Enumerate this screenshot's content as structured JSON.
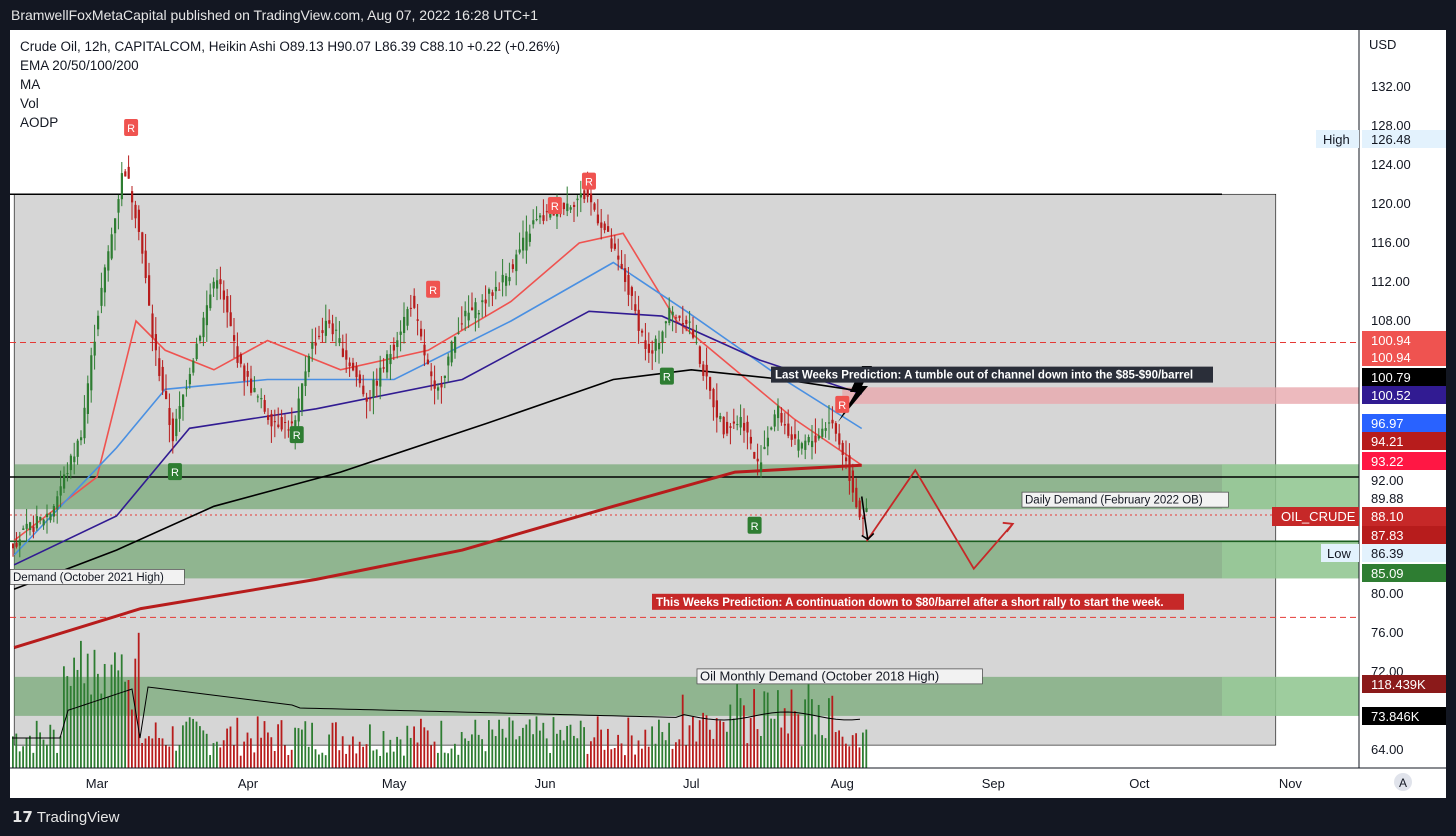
{
  "header": {
    "publisher_line": "BramwellFoxMetaCapital published on TradingView.com, Aug 07, 2022 16:28 UTC+1"
  },
  "legend": {
    "symbol_line": "Crude Oil, 12h, CAPITALCOM, Heikin Ashi  O89.13  H90.07  L86.39  C88.10  +0.22 (+0.26%)",
    "indicators": [
      "EMA 20/50/100/200",
      "MA",
      "Vol",
      "AODP"
    ]
  },
  "footer": {
    "brand": "TradingView",
    "logo_glyph": "17"
  },
  "colors": {
    "bull": "#2e7d32",
    "bear": "#b71c1c",
    "ema20": "#ef5350",
    "ema50": "#4a90e2",
    "ema100": "#311b92",
    "ema200": "#000000",
    "ma": "#b71c1c",
    "range_box": "#d6d6d6",
    "demand_zone": "#6aa36a",
    "supply_zone": "#e8a9ae"
  },
  "chart_data": {
    "type": "candlestick",
    "instrument": "Crude Oil",
    "timeframe": "12h",
    "exchange": "CAPITALCOM",
    "style": "Heikin Ashi",
    "ohlc_last": {
      "open": 89.13,
      "high": 90.07,
      "low": 86.39,
      "close": 88.1,
      "change": "+0.22 (+0.26%)"
    },
    "currency": "USD",
    "y_ticks": [
      "132.00",
      "128.00",
      "124.00",
      "120.00",
      "116.00",
      "112.00",
      "108.00",
      "80.00",
      "76.00",
      "72.00",
      "64.00"
    ],
    "x_ticks": [
      "Mar",
      "Apr",
      "May",
      "Jun",
      "Jul",
      "Aug",
      "Sep",
      "Oct",
      "Nov"
    ],
    "ylim": [
      61.5,
      136
    ],
    "price_key_points": [
      {
        "d": "2022-02-12",
        "p": 85.2
      },
      {
        "d": "2022-02-20",
        "p": 88.5
      },
      {
        "d": "2022-02-26",
        "p": 96
      },
      {
        "d": "2022-03-02",
        "p": 110
      },
      {
        "d": "2022-03-07",
        "p": 124
      },
      {
        "d": "2022-03-10",
        "p": 118
      },
      {
        "d": "2022-03-13",
        "p": 106
      },
      {
        "d": "2022-03-17",
        "p": 96
      },
      {
        "d": "2022-03-21",
        "p": 104
      },
      {
        "d": "2022-03-26",
        "p": 113
      },
      {
        "d": "2022-03-31",
        "p": 103
      },
      {
        "d": "2022-04-06",
        "p": 98
      },
      {
        "d": "2022-04-11",
        "p": 97
      },
      {
        "d": "2022-04-14",
        "p": 105
      },
      {
        "d": "2022-04-18",
        "p": 108
      },
      {
        "d": "2022-04-22",
        "p": 104
      },
      {
        "d": "2022-04-26",
        "p": 100
      },
      {
        "d": "2022-04-30",
        "p": 104
      },
      {
        "d": "2022-05-05",
        "p": 110
      },
      {
        "d": "2022-05-10",
        "p": 100
      },
      {
        "d": "2022-05-15",
        "p": 108
      },
      {
        "d": "2022-05-20",
        "p": 110
      },
      {
        "d": "2022-05-25",
        "p": 113
      },
      {
        "d": "2022-05-30",
        "p": 118
      },
      {
        "d": "2022-06-06",
        "p": 120
      },
      {
        "d": "2022-06-10",
        "p": 121
      },
      {
        "d": "2022-06-14",
        "p": 117
      },
      {
        "d": "2022-06-18",
        "p": 112
      },
      {
        "d": "2022-06-23",
        "p": 104
      },
      {
        "d": "2022-06-27",
        "p": 109
      },
      {
        "d": "2022-07-01",
        "p": 108
      },
      {
        "d": "2022-07-05",
        "p": 101
      },
      {
        "d": "2022-07-08",
        "p": 97
      },
      {
        "d": "2022-07-12",
        "p": 98
      },
      {
        "d": "2022-07-15",
        "p": 93
      },
      {
        "d": "2022-07-19",
        "p": 99
      },
      {
        "d": "2022-07-23",
        "p": 95
      },
      {
        "d": "2022-07-27",
        "p": 96
      },
      {
        "d": "2022-07-30",
        "p": 98
      },
      {
        "d": "2022-08-02",
        "p": 94
      },
      {
        "d": "2022-08-05",
        "p": 88.1
      }
    ],
    "ema": [
      {
        "name": "EMA 20",
        "color": "#ef5350",
        "points": [
          {
            "d": "2022-02-12",
            "p": 85.5
          },
          {
            "d": "2022-03-01",
            "p": 92
          },
          {
            "d": "2022-03-09",
            "p": 108
          },
          {
            "d": "2022-03-15",
            "p": 105
          },
          {
            "d": "2022-03-25",
            "p": 103
          },
          {
            "d": "2022-04-05",
            "p": 106
          },
          {
            "d": "2022-04-20",
            "p": 103
          },
          {
            "d": "2022-05-08",
            "p": 105
          },
          {
            "d": "2022-05-25",
            "p": 110
          },
          {
            "d": "2022-06-08",
            "p": 116
          },
          {
            "d": "2022-06-17",
            "p": 117
          },
          {
            "d": "2022-06-28",
            "p": 108
          },
          {
            "d": "2022-07-10",
            "p": 103
          },
          {
            "d": "2022-07-22",
            "p": 98
          },
          {
            "d": "2022-08-05",
            "p": 93.22
          }
        ]
      },
      {
        "name": "EMA 50",
        "color": "#4a90e2",
        "points": [
          {
            "d": "2022-02-12",
            "p": 84
          },
          {
            "d": "2022-03-05",
            "p": 95
          },
          {
            "d": "2022-03-15",
            "p": 101
          },
          {
            "d": "2022-04-05",
            "p": 102
          },
          {
            "d": "2022-05-01",
            "p": 102
          },
          {
            "d": "2022-05-25",
            "p": 108
          },
          {
            "d": "2022-06-15",
            "p": 114
          },
          {
            "d": "2022-06-30",
            "p": 109
          },
          {
            "d": "2022-07-20",
            "p": 102
          },
          {
            "d": "2022-08-05",
            "p": 96.97
          }
        ]
      },
      {
        "name": "EMA 100",
        "color": "#311b92",
        "points": [
          {
            "d": "2022-02-12",
            "p": 83
          },
          {
            "d": "2022-03-05",
            "p": 88
          },
          {
            "d": "2022-03-20",
            "p": 97
          },
          {
            "d": "2022-04-15",
            "p": 99
          },
          {
            "d": "2022-05-15",
            "p": 102
          },
          {
            "d": "2022-06-10",
            "p": 109
          },
          {
            "d": "2022-06-25",
            "p": 108.5
          },
          {
            "d": "2022-07-15",
            "p": 104
          },
          {
            "d": "2022-08-05",
            "p": 100.52
          }
        ]
      },
      {
        "name": "EMA 200",
        "color": "#000000",
        "points": [
          {
            "d": "2022-02-12",
            "p": 80.5
          },
          {
            "d": "2022-03-05",
            "p": 84.5
          },
          {
            "d": "2022-03-25",
            "p": 89
          },
          {
            "d": "2022-04-20",
            "p": 92.5
          },
          {
            "d": "2022-05-20",
            "p": 97.5
          },
          {
            "d": "2022-06-15",
            "p": 102
          },
          {
            "d": "2022-07-01",
            "p": 103
          },
          {
            "d": "2022-07-20",
            "p": 102
          },
          {
            "d": "2022-08-05",
            "p": 100.79
          }
        ]
      },
      {
        "name": "MA",
        "color": "#b71c1c",
        "points": [
          {
            "d": "2022-02-12",
            "p": 74.5
          },
          {
            "d": "2022-03-10",
            "p": 78.5
          },
          {
            "d": "2022-04-15",
            "p": 81.5
          },
          {
            "d": "2022-05-15",
            "p": 84.5
          },
          {
            "d": "2022-06-15",
            "p": 89
          },
          {
            "d": "2022-07-10",
            "p": 92.5
          },
          {
            "d": "2022-08-05",
            "p": 93.2
          }
        ]
      }
    ],
    "zones": [
      {
        "label": "",
        "type": "range_box",
        "from": "2022-02-12",
        "to": "2022-10-29",
        "top": 121,
        "bottom": 64.5
      },
      {
        "label": "Daily Demand (February 2022 OB)",
        "type": "demand",
        "from": "2022-02-12",
        "to": "2022-12-01",
        "top": 93.3,
        "bottom": 88.7
      },
      {
        "label": "Demand (October 2021 High)",
        "type": "demand",
        "from": "2022-02-12",
        "to": "2022-12-01",
        "top": 85.4,
        "bottom": 81.6
      },
      {
        "label": "Oil Monthly Demand (October 2018 High)",
        "type": "demand",
        "from": "2022-02-12",
        "to": "2022-12-01",
        "top": 71.5,
        "bottom": 67.5
      },
      {
        "label": "",
        "type": "supply",
        "from": "2022-08-01",
        "to": "2022-12-01",
        "top": 101.2,
        "bottom": 99.5
      }
    ],
    "horizontal_lines": [
      {
        "price": 121,
        "style": "solid",
        "color": "#000000"
      },
      {
        "price": 92.0,
        "style": "solid",
        "color": "#000000"
      },
      {
        "price": 85.4,
        "style": "solid",
        "color": "#1b5e20"
      },
      {
        "price": 105.8,
        "style": "dashed",
        "color": "#e53935"
      },
      {
        "price": 77.6,
        "style": "dashed",
        "color": "#e53935"
      },
      {
        "price": 88.1,
        "style": "dotted",
        "color": "#e53935"
      }
    ],
    "annotations": [
      {
        "text": "Last Weeks Prediction: A tumble out of channel down into the $85-$90/barrel",
        "style": "dark",
        "anchor_date": "2022-08-05",
        "anchor_price": 102.5
      },
      {
        "text": "This Weeks Prediction: A continuation down to $80/barrel after a short rally to start the week.",
        "style": "red",
        "anchor_date": "2022-09-06",
        "anchor_price": 79.2
      }
    ],
    "projection": [
      {
        "d": "2022-08-06",
        "p": 85.4
      },
      {
        "d": "2022-08-16",
        "p": 92.7
      },
      {
        "d": "2022-08-28",
        "p": 82.6
      },
      {
        "d": "2022-09-05",
        "p": 87.2
      }
    ],
    "markers": [
      {
        "letter": "R",
        "color": "red",
        "d": "2022-03-08",
        "p": 127.8
      },
      {
        "letter": "R",
        "color": "red",
        "d": "2022-05-09",
        "p": 111.2
      },
      {
        "letter": "R",
        "color": "red",
        "d": "2022-06-03",
        "p": 119.8
      },
      {
        "letter": "R",
        "color": "red",
        "d": "2022-06-10",
        "p": 122.3
      },
      {
        "letter": "R",
        "color": "red",
        "d": "2022-08-01",
        "p": 99.4
      },
      {
        "letter": "R",
        "color": "green",
        "d": "2022-03-17",
        "p": 92.5
      },
      {
        "letter": "R",
        "color": "green",
        "d": "2022-04-11",
        "p": 96.3
      },
      {
        "letter": "R",
        "color": "green",
        "d": "2022-06-26",
        "p": 102.3
      },
      {
        "letter": "R",
        "color": "green",
        "d": "2022-07-14",
        "p": 87
      }
    ],
    "volume_summary": {
      "max_label": "118.439K",
      "ma_label": "73.846K"
    },
    "price_scale_labels": [
      {
        "text": "USD",
        "kind": "header"
      },
      {
        "text": "High",
        "value": "126.48",
        "kind": "high"
      },
      {
        "text": "100.94",
        "kind": "red_light"
      },
      {
        "text": "100.94",
        "kind": "red_light"
      },
      {
        "text": "100.79",
        "kind": "black"
      },
      {
        "text": "100.52",
        "kind": "purple"
      },
      {
        "text": "96.97",
        "kind": "blue"
      },
      {
        "text": "94.21",
        "kind": "dark_red"
      },
      {
        "text": "93.22",
        "kind": "red"
      },
      {
        "text": "92.00",
        "kind": "plain"
      },
      {
        "text": "89.88",
        "kind": "plain"
      },
      {
        "text": "OIL_CRUDE",
        "value": "88.10",
        "kind": "symbol"
      },
      {
        "text": "87.83",
        "kind": "dark_red"
      },
      {
        "text": "Low",
        "value": "86.39",
        "kind": "low"
      },
      {
        "text": "85.09",
        "kind": "green"
      },
      {
        "text": "118.439K",
        "kind": "maroon"
      },
      {
        "text": "73.846K",
        "kind": "black"
      }
    ],
    "axis_button": "A"
  }
}
